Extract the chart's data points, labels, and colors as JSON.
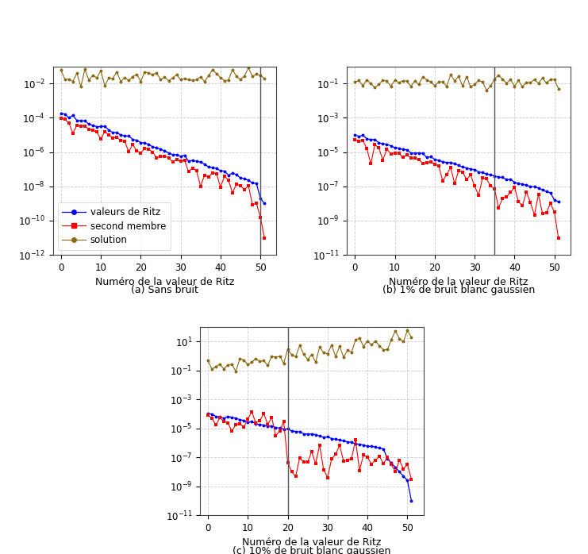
{
  "subplot_titles": [
    "(a) Sans bruit",
    "(b) 1% de bruit blanc gaussien",
    "(c) 10% de bruit blanc gaussien"
  ],
  "xlabel": "Numéro de la valeur de Ritz",
  "xlim": [
    -2,
    54
  ],
  "xticks": [
    0,
    10,
    20,
    30,
    40,
    50
  ],
  "vline_a": 50,
  "vline_b": 35,
  "vline_c": 20,
  "legend_labels": [
    "valeurs de Ritz",
    "second membre",
    "solution"
  ],
  "color_blue": "#0000FF",
  "color_red": "#FF0000",
  "color_brown": "#8B6914",
  "grid_color": "#CCCCCC",
  "vline_color": "#555555",
  "background": "#FFFFFF",
  "ylim_a": [
    -12,
    -1
  ],
  "ylim_b": [
    -11,
    0
  ],
  "ylim_c": [
    -11,
    2
  ]
}
